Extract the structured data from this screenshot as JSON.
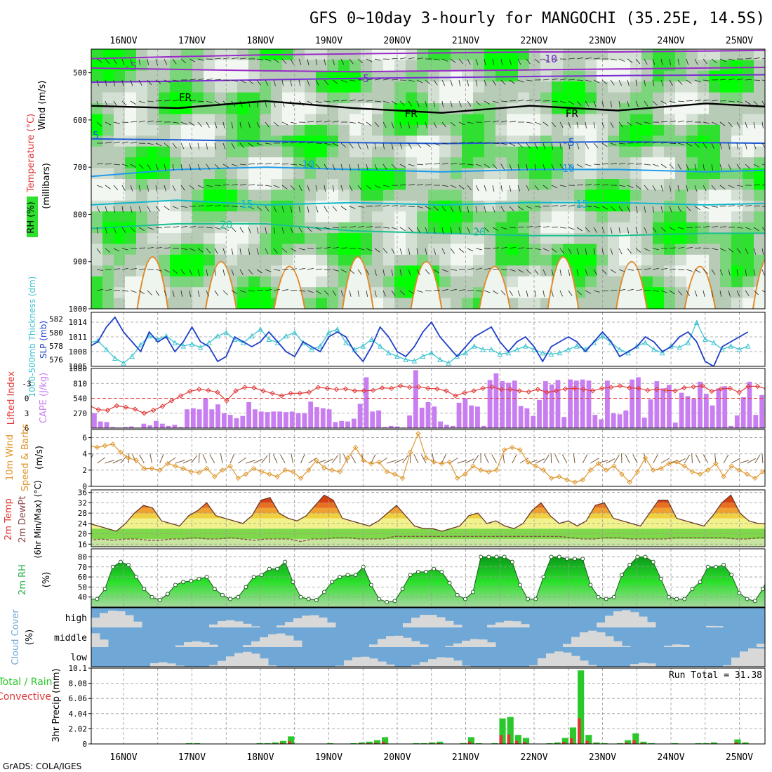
{
  "title": "GFS 0~10day 3-hourly for MANGOCHI (35.25E, 14.5S)",
  "footer": "GrADS: COLA/IGES",
  "dates": [
    "16NOV",
    "17NOV",
    "18NOV",
    "19NOV",
    "20NOV",
    "21NOV",
    "22NOV",
    "23NOV",
    "24NOV",
    "25NOV"
  ],
  "chart_data": [
    {
      "type": "heatmap",
      "name": "upper_air",
      "ylabel_parts": [
        "RH (%)",
        "Temperature",
        "(°C)",
        "Wind (m/s)"
      ],
      "ylabel2": "(millibars)",
      "yticks": [
        500,
        600,
        700,
        800,
        900,
        1000
      ],
      "ylim": [
        450,
        1000
      ],
      "rh_color_levels": [
        "#f2f7f2",
        "#d4e0d4",
        "#b7cbb7",
        "#7bd67b",
        "#30e030",
        "#00ff00"
      ],
      "isotherms": [
        {
          "label": "-5",
          "color": "#9a2bc9",
          "p": [
            490,
            493,
            496,
            498,
            496,
            494,
            492,
            490,
            488
          ]
        },
        {
          "label": "-10",
          "color": "#9a2bc9",
          "p": [
            470,
            466,
            462,
            460,
            458,
            456,
            456,
            454,
            452
          ]
        },
        {
          "label": "-5",
          "color": "#7a2bd4",
          "p": [
            520,
            518,
            515,
            512,
            510,
            508,
            506,
            505,
            504
          ]
        },
        {
          "label": "FR",
          "color": "#000000",
          "p": [
            570,
            575,
            560,
            575,
            585,
            570,
            580,
            565,
            575
          ]
        },
        {
          "label": "-5",
          "color": "#1e5bd8",
          "p": [
            640,
            642,
            645,
            648,
            650,
            648,
            646,
            648,
            650
          ]
        },
        {
          "label": "10",
          "color": "#1e9bea",
          "p": [
            720,
            705,
            700,
            705,
            710,
            705,
            705,
            710,
            705
          ]
        },
        {
          "label": "15",
          "color": "#12b8c8",
          "p": [
            780,
            770,
            780,
            775,
            780,
            775,
            775,
            780,
            775
          ]
        },
        {
          "label": "20",
          "color": "#1abf90",
          "p": [
            830,
            820,
            820,
            835,
            840,
            845,
            845,
            840,
            840
          ]
        }
      ],
      "isotherm_labels": [
        {
          "text": "-5",
          "color": "#9a2bc9",
          "day": 0.1,
          "p": 494
        },
        {
          "text": "-5",
          "color": "#7a2bd4",
          "day": 3.5,
          "p": 520
        },
        {
          "text": "-10",
          "color": "#7a2bd4",
          "day": 6.2,
          "p": 478
        },
        {
          "text": "FR",
          "color": "#000000",
          "day": 0.9,
          "p": 560
        },
        {
          "text": "FR",
          "color": "#000000",
          "day": 4.2,
          "p": 594
        },
        {
          "text": "FR",
          "color": "#000000",
          "day": 6.55,
          "p": 594
        },
        {
          "text": "-5",
          "color": "#1e5bd8",
          "day": -0.45,
          "p": 640
        },
        {
          "text": "-5",
          "color": "#1e5bd8",
          "day": 6.5,
          "p": 655
        },
        {
          "text": "10",
          "color": "#1e9bea",
          "day": 2.7,
          "p": 702
        },
        {
          "text": "10",
          "color": "#1e9bea",
          "day": 6.5,
          "p": 710
        },
        {
          "text": "15",
          "color": "#12b8c8",
          "day": 1.8,
          "p": 786
        },
        {
          "text": "15",
          "color": "#12b8c8",
          "day": 6.7,
          "p": 786
        },
        {
          "text": "20",
          "color": "#1abf90",
          "day": 1.5,
          "p": 830
        },
        {
          "text": "20",
          "color": "#1abf90",
          "day": 5.2,
          "p": 845
        }
      ]
    },
    {
      "type": "line",
      "name": "slp_thickness",
      "ylabel_left": "1000-500mb Thickness (dm)",
      "ylabel_right": "SLP (mb)",
      "yticks_left": [
        576,
        578,
        580,
        582
      ],
      "yticks_right": [
        1005,
        1008,
        1011,
        1014
      ],
      "ylim_slp": [
        1005,
        1016
      ],
      "slp_color": "#1f3fc8",
      "thick_color": "#3ec4d0",
      "slp": [
        1009,
        1010,
        1013,
        1015,
        1012,
        1010,
        1008,
        1012,
        1010,
        1011,
        1008,
        1010,
        1013,
        1010,
        1009,
        1006,
        1007,
        1011,
        1010,
        1009,
        1010,
        1012,
        1010,
        1008,
        1007,
        1010,
        1009,
        1008,
        1011,
        1012,
        1011,
        1008,
        1006,
        1009,
        1013,
        1011,
        1008,
        1007,
        1009,
        1012,
        1014,
        1011,
        1009,
        1007,
        1009,
        1011,
        1012,
        1013,
        1010,
        1008,
        1010,
        1011,
        1009,
        1006,
        1009,
        1010,
        1011,
        1010,
        1008,
        1010,
        1012,
        1010,
        1007,
        1008,
        1009,
        1011,
        1010,
        1008,
        1009,
        1011,
        1012,
        1010,
        1006,
        1005,
        1009,
        1010,
        1011,
        1012
      ],
      "thickness": [
        578.5,
        578.8,
        577.5,
        576.2,
        575.5,
        576.5,
        578.2,
        579.5,
        579.0,
        579.5,
        578.5,
        578.0,
        578.3,
        577.8,
        578.5,
        579.5,
        580.0,
        579.0,
        578.5,
        579.5,
        580.5,
        579.0,
        578.5,
        579.5,
        580.0,
        578.5,
        577.5,
        578.0,
        580.0,
        580.5,
        578.5,
        577.5,
        578.0,
        579.0,
        578.0,
        577.0,
        576.5,
        576.0,
        575.8,
        576.5,
        577.0,
        576.0,
        575.5,
        576.5,
        577.0,
        578.0,
        577.5,
        577.5,
        576.8,
        577.0,
        577.5,
        578.0,
        577.5,
        577.0,
        576.8,
        577.0,
        577.5,
        578.0,
        577.5,
        578.5,
        579.5,
        578.5,
        577.5,
        577.0,
        578.0,
        578.5,
        577.5,
        577.0,
        578.0,
        577.8,
        578.5,
        581.5,
        579.0,
        578.5,
        577.5,
        578.0,
        577.5,
        578.0
      ]
    },
    {
      "type": "bar",
      "name": "cape_li",
      "ylabel_left": "Lifted Index",
      "ylabel_right": "CAPE (J/kg)",
      "yticks_left": [
        -3,
        0,
        3,
        6
      ],
      "yticks_right": [
        270,
        540,
        810,
        1080
      ],
      "cape_color": "#c87ef0",
      "li_color": "#e03838",
      "cape": [
        270,
        120,
        110,
        20,
        10,
        20,
        30,
        10,
        80,
        50,
        130,
        80,
        40,
        60,
        20,
        340,
        360,
        340,
        540,
        340,
        430,
        270,
        240,
        180,
        220,
        470,
        340,
        300,
        290,
        300,
        300,
        290,
        300,
        270,
        270,
        480,
        380,
        360,
        340,
        110,
        130,
        120,
        170,
        440,
        920,
        300,
        320,
        20,
        40,
        30,
        10,
        230,
        1050,
        370,
        470,
        390,
        120,
        60,
        40,
        460,
        540,
        410,
        390,
        40,
        870,
        990,
        850,
        820,
        860,
        400,
        360,
        220,
        510,
        850,
        790,
        870,
        200,
        880,
        860,
        880,
        860,
        240,
        160,
        860,
        270,
        250,
        320,
        880,
        920,
        190,
        520,
        850,
        720,
        780,
        100,
        640,
        580,
        530,
        840,
        620,
        410,
        720,
        760,
        40,
        230,
        560,
        840,
        240,
        600
      ],
      "li": [
        1.5,
        2.3,
        2.4,
        1.5,
        1.8,
        2.2,
        3.0,
        2.4,
        1.6,
        0.5,
        -0.5,
        -1.4,
        -1.8,
        -1.6,
        -1.2,
        0.5,
        -1.5,
        -2.2,
        -2.1,
        -1.5,
        -1.0,
        -0.5,
        -1.0,
        -1.0,
        -1.2,
        -2.2,
        -2.0,
        -1.8,
        -1.9,
        -1.5,
        -1.5,
        -1.6,
        -2.1,
        -2.0,
        -2.5,
        -2.2,
        -2.3,
        -2.0,
        -1.9,
        -1.5,
        -0.5,
        -1.1,
        -1.5,
        -2.0,
        -2.3,
        -1.8,
        -1.8,
        -1.5,
        -1.3,
        -1.8,
        -1.2,
        -1.5,
        -1.9,
        -2.0,
        -1.8,
        -1.5,
        -2.0,
        -2.2,
        -2.5,
        -2.1,
        -2.0,
        -1.6,
        -1.8,
        -1.6,
        -1.5,
        -2.1,
        -2.3,
        -2.5,
        -1.4,
        -1.9,
        -2.0,
        -1.2,
        -2.4,
        -2.4,
        -1.9,
        -1.5,
        -2.5,
        -1.5
      ]
    },
    {
      "type": "line",
      "name": "wind10m",
      "ylabel": "10m Wind Speed & Barbs (m/s)",
      "yticks": [
        0,
        2,
        4,
        6
      ],
      "ylim": [
        0,
        7
      ],
      "color": "#e0962c",
      "speed": [
        5.0,
        4.8,
        5.0,
        5.2,
        4.2,
        3.5,
        3.2,
        2.2,
        2.2,
        2.0,
        2.8,
        2.5,
        2.2,
        1.8,
        1.7,
        2.2,
        1.2,
        2.0,
        2.5,
        1.0,
        1.5,
        2.2,
        1.8,
        1.5,
        1.2,
        2.0,
        1.8,
        1.0,
        2.0,
        3.2,
        2.3,
        2.0,
        1.8,
        3.5,
        4.8,
        3.2,
        2.8,
        3.0,
        1.8,
        1.5,
        1.0,
        4.2,
        6.5,
        3.5,
        3.0,
        2.8,
        3.0,
        1.0,
        1.5,
        2.5,
        2.0,
        1.8,
        2.0,
        4.5,
        4.8,
        4.5,
        3.0,
        2.5,
        2.0,
        1.0,
        1.2,
        0.8,
        0.5,
        0.8,
        2.0,
        2.8,
        2.0,
        2.5,
        1.5,
        0.5,
        1.8,
        3.5,
        2.0,
        2.2,
        2.8,
        3.0,
        2.5,
        1.8,
        1.5,
        2.0,
        2.8,
        1.2,
        2.5,
        2.0,
        1.5,
        1.0,
        1.8,
        2.5,
        2.8,
        1.2,
        0.8
      ]
    },
    {
      "type": "area",
      "name": "temp2m",
      "ylabel_left": "2m Temp 2m DewPt",
      "ylabel_right": "(6hr Min/Max) (°C)",
      "yticks": [
        16,
        20,
        24,
        28,
        32,
        36
      ],
      "ylim": [
        15,
        37
      ],
      "band_colors": [
        "#c9e6a0",
        "#7fd84a",
        "#f2f28c",
        "#f0cf40",
        "#f0a030",
        "#e87020",
        "#d84010"
      ],
      "temp": [
        24,
        23,
        22,
        21,
        24,
        28,
        31,
        30,
        25,
        24,
        23,
        27,
        29,
        32,
        27,
        26,
        25,
        24,
        27,
        33,
        34,
        28,
        26,
        25,
        27,
        31,
        35,
        33,
        26,
        25,
        24,
        23,
        25,
        28,
        31,
        27,
        23,
        22,
        22,
        21,
        22,
        23,
        27,
        28,
        24,
        25,
        23,
        22,
        24,
        29,
        32,
        27,
        24,
        25,
        23,
        25,
        31,
        32,
        26,
        25,
        24,
        23,
        28,
        33,
        33,
        26,
        25,
        24,
        23,
        27,
        32,
        35,
        28,
        25,
        24,
        24,
        23,
        25,
        27
      ],
      "dewpt": [
        17.5,
        18,
        17.5,
        18,
        18,
        17.5,
        17.5,
        18,
        18,
        18.5,
        18,
        18,
        18.5,
        18,
        17.5,
        18,
        18,
        18,
        17,
        18,
        18,
        18.5,
        18.5,
        18,
        18,
        18,
        19,
        19,
        19,
        19,
        19,
        19,
        19,
        19,
        19,
        19,
        19,
        19,
        19,
        19,
        19,
        18.5,
        18,
        18,
        18.5,
        18.5,
        18,
        18,
        18,
        18,
        18.5,
        18.5,
        18.5,
        18.5,
        18.5,
        18,
        18,
        18.5,
        18.5,
        18.5,
        18.5
      ]
    },
    {
      "type": "area",
      "name": "rh2m",
      "ylabel": "2m RH (%)",
      "yticks": [
        40,
        50,
        60,
        70,
        80
      ],
      "ylim": [
        30,
        88
      ],
      "color": "#2ab04a",
      "rh": [
        38,
        38,
        48,
        70,
        75,
        72,
        60,
        48,
        40,
        37,
        43,
        52,
        55,
        56,
        58,
        60,
        48,
        42,
        38,
        40,
        50,
        60,
        62,
        68,
        68,
        75,
        55,
        40,
        38,
        37,
        45,
        55,
        60,
        62,
        62,
        70,
        52,
        38,
        35,
        36,
        48,
        62,
        65,
        65,
        68,
        65,
        54,
        42,
        38,
        45,
        80,
        80,
        80,
        80,
        75,
        52,
        38,
        38,
        60,
        80,
        80,
        78,
        78,
        78,
        52,
        40,
        38,
        40,
        62,
        72,
        80,
        80,
        75,
        58,
        40,
        38,
        38,
        48,
        55,
        70,
        70,
        72,
        62,
        44,
        38,
        36,
        48,
        65,
        70,
        78,
        55
      ]
    },
    {
      "type": "heatmap",
      "name": "cloud_cover",
      "ylabel": "Cloud Cover (%)",
      "levels": [
        "high",
        "middle",
        "low"
      ],
      "sky_color": "#6fa8d6",
      "cloud_color": "#d8d8d8"
    },
    {
      "type": "bar",
      "name": "precip",
      "ylabel": "3hr Precip (mm)",
      "legend_left": [
        "Total / Rain",
        "Convective"
      ],
      "run_total": "Run Total = 31.38",
      "yticks": [
        0,
        2.02,
        4.04,
        6.06,
        8.08,
        10.1
      ],
      "ylim": [
        0,
        10.1
      ],
      "total_color": "#2ac82a",
      "conv_color": "#e03838",
      "precip": [
        0,
        0,
        0,
        0,
        0,
        0,
        0,
        0,
        0,
        0,
        0,
        0,
        0.1,
        0.1,
        0,
        0,
        0,
        0,
        0,
        0,
        0,
        0.1,
        0.1,
        0.2,
        0.4,
        1.0,
        0,
        0,
        0,
        0,
        0.1,
        0,
        0,
        0.1,
        0.2,
        0.3,
        0.5,
        0.9,
        0,
        0,
        0,
        0.1,
        0.1,
        0.2,
        0.3,
        0,
        0,
        0.1,
        0.9,
        0.1,
        0,
        0.1,
        3.4,
        3.6,
        1.2,
        0.8,
        0,
        0,
        0.1,
        0.2,
        0.8,
        2.2,
        9.8,
        1.2,
        0.2,
        0.1,
        0,
        0.1,
        0.5,
        1.4,
        0.3,
        0.1,
        0,
        0,
        0.1,
        0,
        0,
        0.1,
        0.1,
        0.2,
        0,
        0,
        0.6,
        0.2,
        0,
        0
      ]
    }
  ]
}
